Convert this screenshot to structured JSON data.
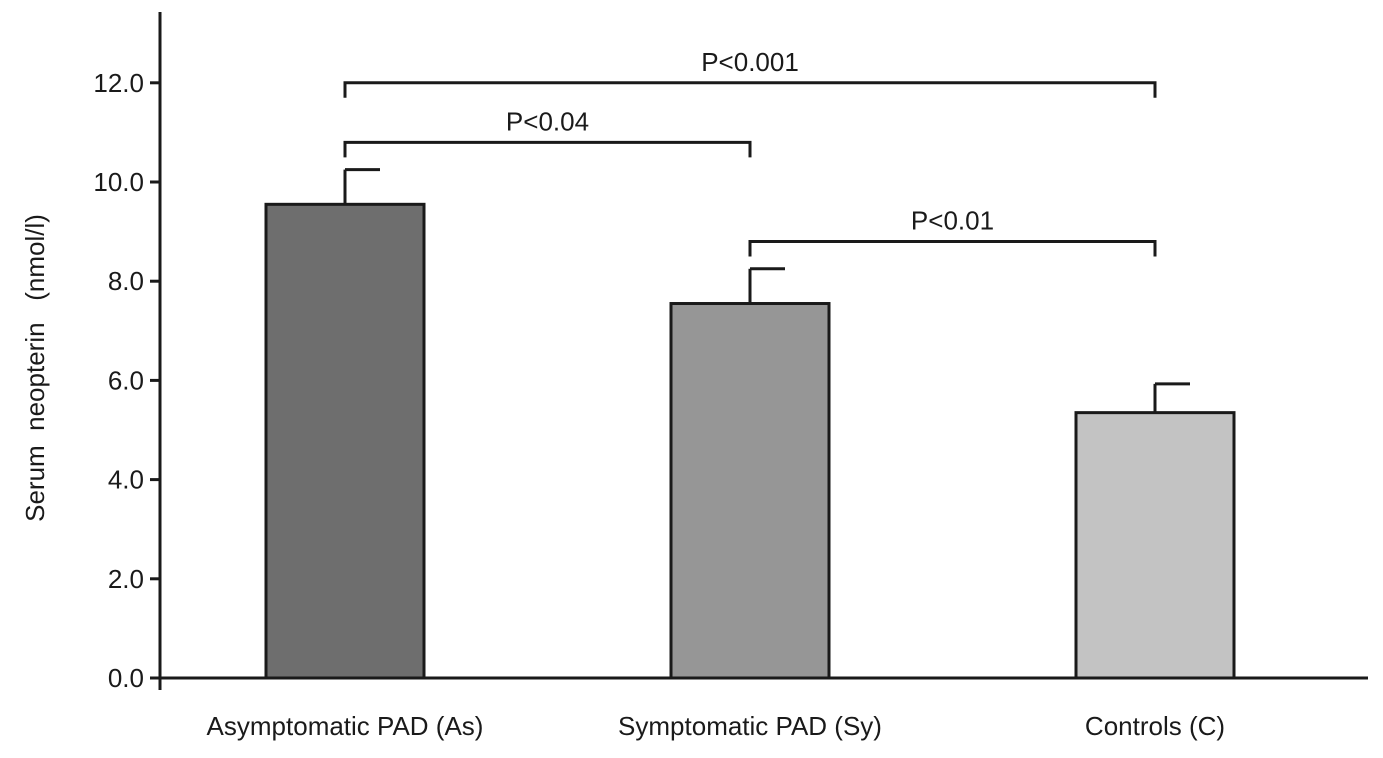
{
  "chart_data": {
    "type": "bar",
    "categories": [
      "Asymptomatic PAD (As)",
      "Symptomatic PAD (Sy)",
      "Controls (C)"
    ],
    "values": [
      9.55,
      7.55,
      5.35
    ],
    "error": [
      0.7,
      0.7,
      0.58
    ],
    "bar_colors": [
      "#6e6e6e",
      "#969696",
      "#c3c3c3"
    ],
    "ylabel": "Serum  neopterin   (nmol/l)",
    "ylim": [
      0,
      13.4
    ],
    "yticks": [
      "0.0",
      "2.0",
      "4.0",
      "6.0",
      "8.0",
      "10.0",
      "12.0"
    ],
    "significance": [
      {
        "from": 0,
        "to": 2,
        "label": "P<0.001",
        "level": 12.0
      },
      {
        "from": 0,
        "to": 1,
        "label": "P<0.04",
        "level": 10.8
      },
      {
        "from": 1,
        "to": 2,
        "label": "P<0.01",
        "level": 8.8
      }
    ]
  }
}
